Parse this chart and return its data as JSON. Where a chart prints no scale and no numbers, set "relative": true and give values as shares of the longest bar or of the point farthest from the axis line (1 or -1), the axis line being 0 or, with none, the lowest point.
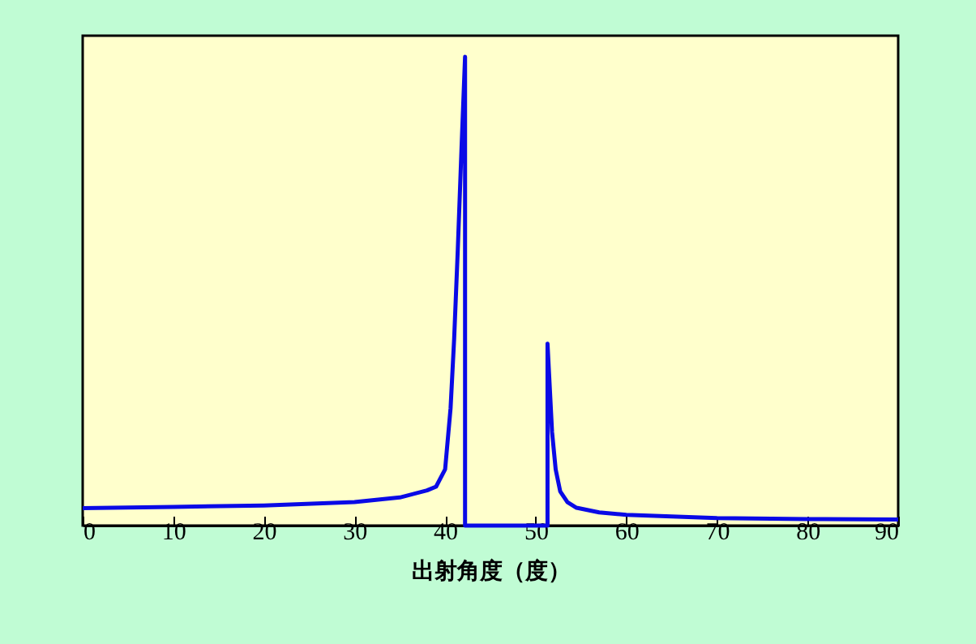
{
  "chart_data": {
    "type": "line",
    "relative": true,
    "xlabel": "出射角度（度）",
    "x": [
      0,
      10,
      20,
      30,
      35,
      38,
      39,
      40,
      40.6,
      41,
      41.4,
      41.8,
      42.2,
      42.2,
      51.3,
      51.3,
      51.8,
      52.2,
      52.7,
      53.5,
      54.5,
      57,
      60,
      70,
      80,
      90
    ],
    "series": [
      {
        "color": "#0a0ae6",
        "values": [
          0.037,
          0.04,
          0.043,
          0.05,
          0.06,
          0.075,
          0.083,
          0.12,
          0.25,
          0.4,
          0.59,
          0.8,
          1,
          0,
          0,
          0.388,
          0.2,
          0.12,
          0.073,
          0.05,
          0.038,
          0.028,
          0.023,
          0.016,
          0.014,
          0.013
        ]
      }
    ],
    "xlim": [
      0,
      90
    ],
    "xticks": [
      0,
      10,
      20,
      30,
      40,
      50,
      60,
      70,
      80,
      90
    ],
    "grid": false,
    "marker": "none",
    "line_style": "solid"
  }
}
